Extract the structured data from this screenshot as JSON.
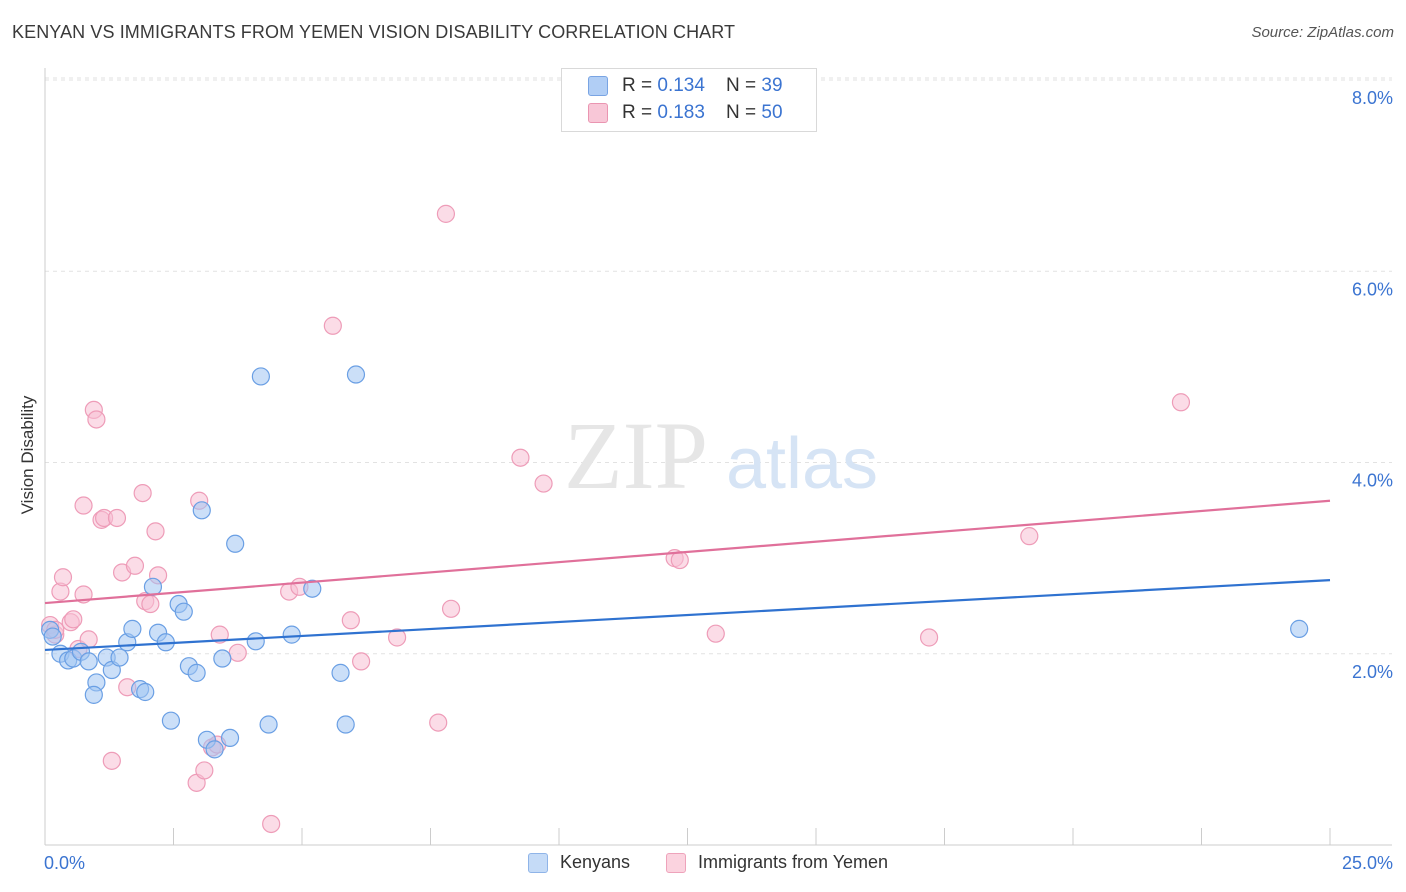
{
  "title": "KENYAN VS IMMIGRANTS FROM YEMEN VISION DISABILITY CORRELATION CHART",
  "source": "Source: ZipAtlas.com",
  "watermark": {
    "zip": "ZIP",
    "atlas": "atlas"
  },
  "legend": {
    "rows": [
      {
        "r_label": "R = ",
        "r_value": "0.134",
        "n_label": "N = ",
        "n_value": "39",
        "color": "#a9c9f5",
        "border": "#6b9be0"
      },
      {
        "r_label": "R = ",
        "r_value": "0.183",
        "n_label": "N = ",
        "n_value": "50",
        "color": "#f8c2d3",
        "border": "#e88aa9"
      }
    ]
  },
  "bottom_legend": [
    {
      "label": "Kenyans",
      "color": "#c5dbf7",
      "border": "#8fb4e8"
    },
    {
      "label": "Immigrants from Yemen",
      "color": "#fbd3df",
      "border": "#eea3bb"
    }
  ],
  "chart_data": {
    "type": "scatter",
    "title": "KENYAN VS IMMIGRANTS FROM YEMEN VISION DISABILITY CORRELATION CHART",
    "xlabel": "",
    "ylabel": "Vision Disability",
    "xlim": [
      0,
      25
    ],
    "ylim": [
      0,
      8
    ],
    "x_tick_labels": [
      "0.0%",
      "25.0%"
    ],
    "y_ticks": [
      2,
      4,
      6,
      8
    ],
    "y_tick_labels": [
      "2.0%",
      "4.0%",
      "6.0%",
      "8.0%"
    ],
    "grid": true,
    "series": [
      {
        "name": "Kenyans",
        "color": "#6a9fe4",
        "fill": "rgba(160,196,242,0.55)",
        "trend": {
          "x": [
            0,
            25
          ],
          "y": [
            2.04,
            2.77
          ],
          "color": "#2f72d0"
        },
        "points": [
          [
            0.1,
            2.25
          ],
          [
            0.15,
            2.18
          ],
          [
            0.3,
            2.0
          ],
          [
            0.45,
            1.93
          ],
          [
            0.55,
            1.95
          ],
          [
            0.7,
            2.02
          ],
          [
            0.85,
            1.92
          ],
          [
            1.0,
            1.7
          ],
          [
            0.95,
            1.57
          ],
          [
            1.2,
            1.96
          ],
          [
            1.3,
            1.83
          ],
          [
            1.45,
            1.96
          ],
          [
            1.6,
            2.12
          ],
          [
            1.7,
            2.26
          ],
          [
            1.85,
            1.63
          ],
          [
            1.95,
            1.6
          ],
          [
            2.1,
            2.7
          ],
          [
            2.2,
            2.22
          ],
          [
            2.35,
            2.12
          ],
          [
            2.45,
            1.3
          ],
          [
            2.6,
            2.52
          ],
          [
            2.7,
            2.44
          ],
          [
            2.8,
            1.87
          ],
          [
            2.95,
            1.8
          ],
          [
            3.05,
            3.5
          ],
          [
            3.15,
            1.1
          ],
          [
            3.3,
            1.0
          ],
          [
            3.45,
            1.95
          ],
          [
            3.6,
            1.12
          ],
          [
            3.7,
            3.15
          ],
          [
            4.1,
            2.13
          ],
          [
            4.2,
            4.9
          ],
          [
            4.35,
            1.26
          ],
          [
            4.8,
            2.2
          ],
          [
            5.2,
            2.68
          ],
          [
            5.75,
            1.8
          ],
          [
            5.85,
            1.26
          ],
          [
            6.05,
            4.92
          ],
          [
            24.4,
            2.26
          ]
        ]
      },
      {
        "name": "Immigrants from Yemen",
        "color": "#ee9cb8",
        "fill": "rgba(248,192,212,0.55)",
        "trend": {
          "x": [
            0,
            25
          ],
          "y": [
            2.53,
            3.6
          ],
          "color": "#e0709a"
        },
        "points": [
          [
            0.1,
            2.3
          ],
          [
            0.2,
            2.2
          ],
          [
            0.3,
            2.65
          ],
          [
            0.35,
            2.8
          ],
          [
            0.5,
            2.33
          ],
          [
            0.55,
            2.36
          ],
          [
            0.65,
            2.05
          ],
          [
            0.75,
            2.62
          ],
          [
            0.75,
            3.55
          ],
          [
            0.85,
            2.15
          ],
          [
            0.95,
            4.55
          ],
          [
            1.0,
            4.45
          ],
          [
            1.1,
            3.4
          ],
          [
            1.15,
            3.42
          ],
          [
            1.3,
            0.88
          ],
          [
            1.4,
            3.42
          ],
          [
            1.5,
            2.85
          ],
          [
            1.6,
            1.65
          ],
          [
            1.75,
            2.92
          ],
          [
            1.9,
            3.68
          ],
          [
            1.95,
            2.55
          ],
          [
            2.05,
            2.52
          ],
          [
            2.15,
            3.28
          ],
          [
            2.2,
            2.82
          ],
          [
            2.95,
            0.65
          ],
          [
            3.0,
            3.6
          ],
          [
            3.1,
            0.78
          ],
          [
            3.25,
            1.02
          ],
          [
            3.35,
            1.05
          ],
          [
            3.4,
            2.2
          ],
          [
            3.75,
            2.01
          ],
          [
            4.4,
            0.22
          ],
          [
            4.75,
            2.65
          ],
          [
            4.95,
            2.7
          ],
          [
            5.6,
            5.43
          ],
          [
            5.95,
            2.35
          ],
          [
            6.15,
            1.92
          ],
          [
            6.85,
            2.17
          ],
          [
            7.65,
            1.28
          ],
          [
            7.8,
            6.6
          ],
          [
            7.9,
            2.47
          ],
          [
            9.25,
            4.05
          ],
          [
            9.7,
            3.78
          ],
          [
            12.25,
            3.0
          ],
          [
            12.35,
            2.98
          ],
          [
            13.05,
            2.21
          ],
          [
            17.2,
            2.17
          ],
          [
            19.15,
            3.23
          ],
          [
            22.1,
            4.63
          ],
          [
            0.2,
            2.25
          ]
        ]
      }
    ]
  }
}
